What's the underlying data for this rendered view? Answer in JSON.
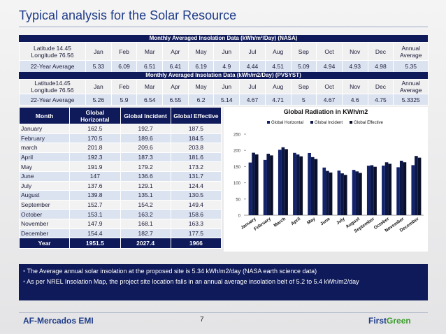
{
  "title": "Typical analysis for the Solar Resource",
  "nasa": {
    "title": "Monthly Averaged Insolation Data (kWh/m²/Day) (NASA)",
    "header": [
      "Latitude 14.45 Longitude 76.56",
      "Jan",
      "Feb",
      "Mar",
      "Apr",
      "May",
      "Jun",
      "Jul",
      "Aug",
      "Sep",
      "Oct",
      "Nov",
      "Dec",
      "Annual Average"
    ],
    "row": [
      "22-Year Average",
      "5.33",
      "6.09",
      "6.51",
      "6.41",
      "6.19",
      "4.9",
      "4.44",
      "4.51",
      "5.09",
      "4.94",
      "4.93",
      "4.98",
      "5.35"
    ]
  },
  "pvsyst": {
    "title": "Monthly Averaged Insolation Data (kWh/m2/Day) (PVSYST)",
    "header": [
      "Latitude14.45 Longitude 76.56",
      "Jan",
      "Feb",
      "Mar",
      "Apr",
      "May",
      "Jun",
      "Jul",
      "Aug",
      "Sep",
      "Oct",
      "Nov",
      "Dec",
      "Annual Average"
    ],
    "row": [
      "22-Year Average",
      "5.26",
      "5.9",
      "6.54",
      "6.55",
      "6.2",
      "5.14",
      "4.67",
      "4.71",
      "5",
      "4.67",
      "4.6",
      "4.75",
      "5.3325"
    ]
  },
  "table": {
    "header": [
      "Month",
      "Global Horizontal",
      "Global Incident",
      "Global Effective"
    ],
    "rows": [
      [
        "January",
        "162.5",
        "192.7",
        "187.5"
      ],
      [
        "February",
        "170.5",
        "189.6",
        "184.5"
      ],
      [
        "march",
        "201.8",
        "209.6",
        "203.8"
      ],
      [
        "April",
        "192.3",
        "187.3",
        "181.6"
      ],
      [
        "May",
        "191.9",
        "179.2",
        "173.2"
      ],
      [
        "June",
        "147",
        "136.6",
        "131.7"
      ],
      [
        "July",
        "137.6",
        "129.1",
        "124.4"
      ],
      [
        "August",
        "139.8",
        "135.1",
        "130.5"
      ],
      [
        "September",
        "152.7",
        "154.2",
        "149.4"
      ],
      [
        "October",
        "153.1",
        "163.2",
        "158.6"
      ],
      [
        "November",
        "147.9",
        "168.1",
        "163.3"
      ],
      [
        "December",
        "154.4",
        "182.7",
        "177.5"
      ]
    ],
    "total": [
      "Year",
      "1951.5",
      "2027.4",
      "1966"
    ]
  },
  "chart_data": {
    "type": "bar",
    "title": "Global Radiation in KWh/m2",
    "categories": [
      "January",
      "February",
      "March",
      "April",
      "May",
      "June",
      "July",
      "August",
      "September",
      "October",
      "November",
      "December"
    ],
    "series": [
      {
        "name": "Global Horizontal",
        "color": "#12226b",
        "values": [
          162.5,
          170.5,
          201.8,
          192.3,
          191.9,
          147,
          137.6,
          139.8,
          152.7,
          153.1,
          147.9,
          154.4
        ]
      },
      {
        "name": "Global Incident",
        "color": "#0b1747",
        "values": [
          192.7,
          189.6,
          209.6,
          187.3,
          179.2,
          136.6,
          129.1,
          135.1,
          154.2,
          163.2,
          168.1,
          182.7
        ]
      },
      {
        "name": "Global Effective",
        "color": "#0a0f2a",
        "values": [
          187.5,
          184.5,
          203.8,
          181.6,
          173.2,
          131.7,
          124.4,
          130.5,
          149.4,
          158.6,
          163.3,
          177.5
        ]
      }
    ],
    "ylim": [
      0,
      250
    ],
    "yticks": [
      0,
      50,
      100,
      150,
      200,
      250
    ],
    "legend": "top"
  },
  "bullets": [
    "The Average annual solar insolation at the proposed site  is 5.34 kWh/m2/day (NASA earth science  data)",
    "As per NREL Insolation Map, the project site location falls in an annual average insolation belt of 5.2 to 5.4 kWh/m2/day"
  ],
  "footer": {
    "company": "AF-Mercados EMI",
    "page": "7",
    "brand_first": "First",
    "brand_second": "Green"
  }
}
